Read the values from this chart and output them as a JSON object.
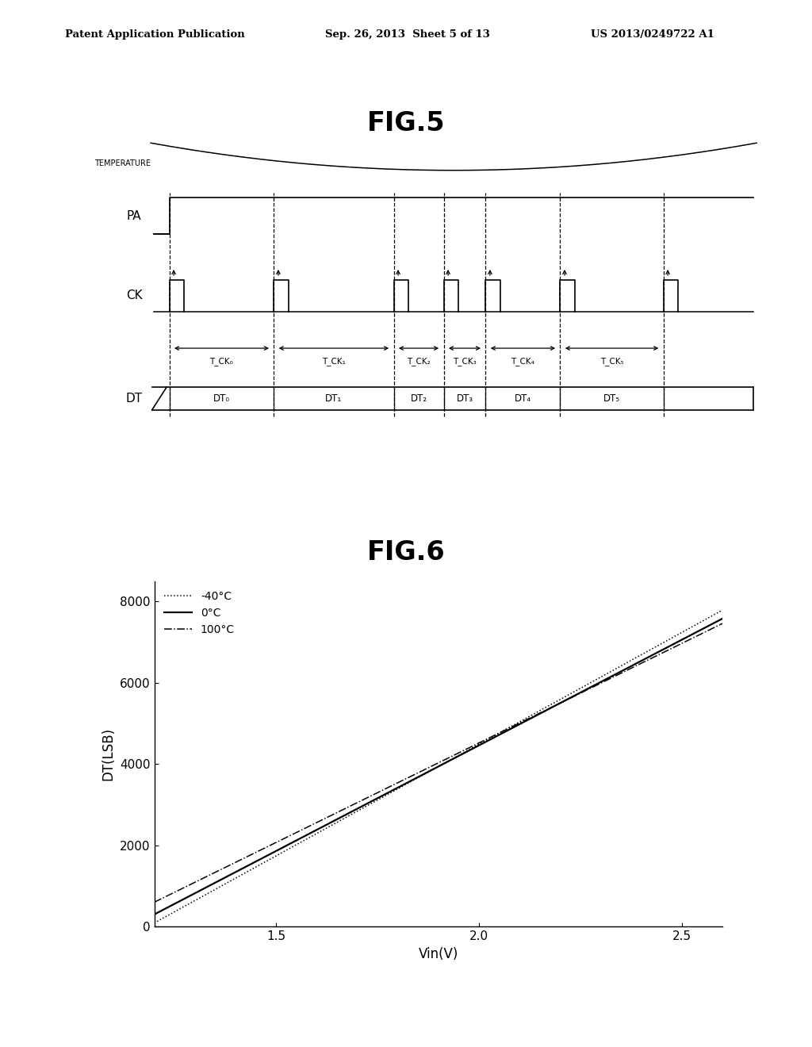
{
  "header_left": "Patent Application Publication",
  "header_mid": "Sep. 26, 2013  Sheet 5 of 13",
  "header_right": "US 2013/0249722 A1",
  "fig5_title": "FIG.5",
  "fig6_title": "FIG.6",
  "temp_label": "TEMPERATURE",
  "pa_label": "PA",
  "ck_label": "CK",
  "dt_label": "DT",
  "t_ck_labels": [
    "T_CK₀",
    "T_CK₁",
    "T_CK₂",
    "T_CK₃",
    "T_CK₄",
    "T_CK₅"
  ],
  "dt_box_labels": [
    "DT₀",
    "DT₁",
    "DT₂",
    "DT₃",
    "DT₄",
    "DT₅"
  ],
  "fig6_xlabel": "Vin(V)",
  "fig6_ylabel": "DT(LSB)",
  "fig6_xlim": [
    1.2,
    2.6
  ],
  "fig6_ylim": [
    0,
    8500
  ],
  "fig6_xticks": [
    1.5,
    2.0,
    2.5
  ],
  "fig6_yticks": [
    0,
    2000,
    4000,
    6000,
    8000
  ],
  "fig6_legend": [
    "-40°C",
    "0°C",
    "100°C"
  ],
  "bg_color": "#ffffff"
}
